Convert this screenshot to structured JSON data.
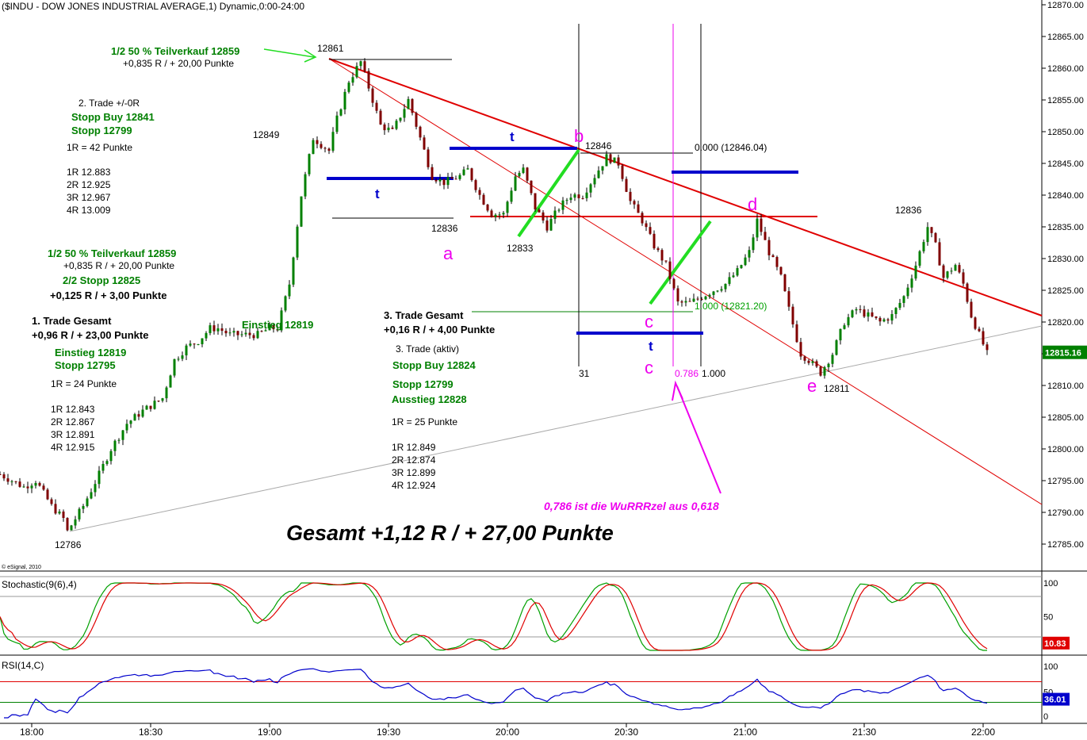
{
  "title": "($INDU - DOW JONES INDUSTRIAL AVERAGE,1) Dynamic,0:00-24:00",
  "copyright": "© eSignal, 2010",
  "colors": {
    "up_candle": "#008000",
    "down_candle": "#800000",
    "trend_red": "#e00000",
    "blue_levels": "#0000cc",
    "green_lines": "#22dd22",
    "magenta": "#ee00ee",
    "stoch_k": "#00a000",
    "stoch_d": "#e00000",
    "rsi": "#0000cc"
  },
  "chart_data": {
    "type": "candlestick",
    "y_ticks": [
      "12870.00",
      "12865.00",
      "12860.00",
      "12855.00",
      "12850.00",
      "12845.00",
      "12840.00",
      "12835.00",
      "12830.00",
      "12825.00",
      "12820.00",
      "12815.00",
      "12810.00",
      "12805.00",
      "12800.00",
      "12795.00",
      "12790.00",
      "12785.00"
    ],
    "y_range": [
      12783.5,
      12871
    ],
    "last_price": "12815.16",
    "x_ticks": [
      "18:00",
      "18:30",
      "19:00",
      "19:30",
      "20:00",
      "20:30",
      "21:00",
      "21:30",
      "22:00"
    ],
    "x_range_minutes": [
      1072,
      1330
    ],
    "stochastic": {
      "label": "Stochastic(9(6),4)",
      "ticks": [
        "100",
        "50"
      ],
      "last": "10.83",
      "levels": [
        80,
        20
      ]
    },
    "rsi": {
      "label": "RSI(14,C)",
      "ticks": [
        "100",
        "50",
        "0"
      ],
      "last": "36.01",
      "levels": [
        70,
        30
      ]
    },
    "price_labels": [
      "12861",
      "12849",
      "12846",
      "12836",
      "12833",
      "12836",
      "12811",
      "12786"
    ],
    "wave_labels": [
      "a",
      "b",
      "c",
      "c",
      "d",
      "e"
    ],
    "fib_labels": [
      "0.000 (12846.04)",
      "1.000 (12821.20)",
      "0.786",
      "1.000",
      "31"
    ],
    "t_labels": [
      "t",
      "t",
      "t"
    ]
  },
  "annotations": {
    "tv1_line1": "1/2 50 % Teilverkauf 12859",
    "tv1_line2": "+0,835 R / + 20,00 Punkte",
    "trade2_title": "2. Trade +/-0R",
    "trade2_stopp_buy": "Stopp Buy 12841",
    "trade2_stopp": "Stopp 12799",
    "trade2_r": "1R = 42 Punkte",
    "trade2_1r": "1R 12.883",
    "trade2_2r": "2R 12.925",
    "trade2_3r": "3R 12.967",
    "trade2_4r": "4R 13.009",
    "tv2_line1": "1/2 50 % Teilverkauf 12859",
    "tv2_line2": "+0,835 R / + 20,00 Punkte",
    "tv2_line3": "2/2 Stopp 12825",
    "tv2_line4": "+0,125 R / + 3,00 Punkte",
    "trade1_title": "1. Trade Gesamt",
    "trade1_result": "+0,96 R / + 23,00 Punkte",
    "trade1_einstieg": "Einstieg 12819",
    "trade1_stopp": "Stopp 12795",
    "trade1_r": "1R = 24 Punkte",
    "trade1_1r": "1R 12.843",
    "trade1_2r": "2R 12.867",
    "trade1_3r": "3R 12.891",
    "trade1_4r": "4R 12.915",
    "einstieg_mid": "Einstieg 12819",
    "trade3_title": "3. Trade Gesamt",
    "trade3_result": "+0,16 R / + 4,00 Punkte",
    "trade3b_title": "3. Trade (aktiv)",
    "trade3_stopp_buy": "Stopp Buy 12824",
    "trade3_stopp": "Stopp 12799",
    "trade3_ausstieg": "Ausstieg 12828",
    "trade3_r": "1R = 25 Punkte",
    "trade3_1r": "1R 12.849",
    "trade3_2r": "2R 12.874",
    "trade3_3r": "3R 12.899",
    "trade3_4r": "4R 12.924",
    "wurzel_note": "0,786 ist die WuRRRzel aus 0,618",
    "gesamt": "Gesamt +1,12 R / + 27,00 Punkte"
  }
}
